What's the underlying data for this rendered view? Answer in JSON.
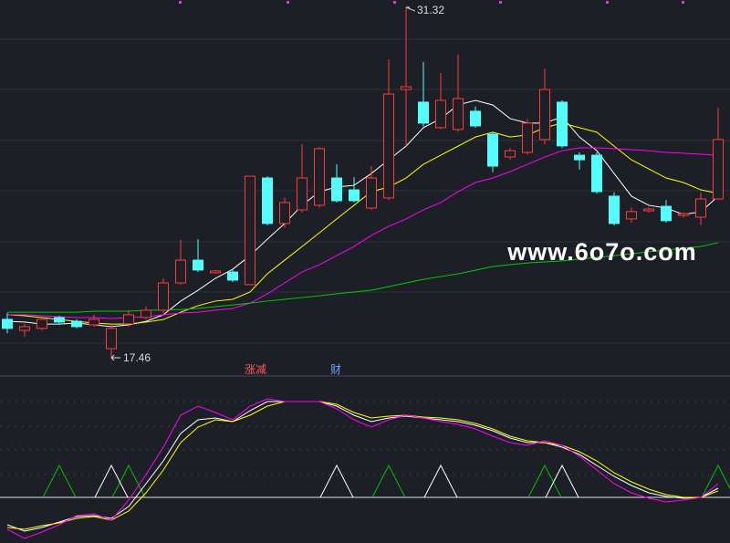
{
  "chart_data": [
    {
      "type": "candlestick",
      "open": [
        18.98,
        18.54,
        18.62,
        19.05,
        18.9,
        18.76,
        17.82,
        18.8,
        19.05,
        19.34,
        20.42,
        21.32,
        20.82,
        20.85,
        20.35,
        24.57,
        22.77,
        23.31,
        23.49,
        24.57,
        24.1,
        23.38,
        23.78,
        28.07,
        27.57,
        26.56,
        26.49,
        27.21,
        26.3,
        25.4,
        25.58,
        26.09,
        27.57,
        25.47,
        25.47,
        23.85,
        22.95,
        23.27,
        23.45,
        23.09,
        23.02,
        23.74
      ],
      "high": [
        19.23,
        18.8,
        19.05,
        19.12,
        18.98,
        19.16,
        18.76,
        19.34,
        19.5,
        20.6,
        22.12,
        22.15,
        20.93,
        20.93,
        24.64,
        24.64,
        23.8,
        25.91,
        25.8,
        25.11,
        24.6,
        25.04,
        29.26,
        31.32,
        29.16,
        28.72,
        29.45,
        27.4,
        26.4,
        25.75,
        26.9,
        28.9,
        27.65,
        25.58,
        25.58,
        24.0,
        23.4,
        23.4,
        23.7,
        23.2,
        24.0,
        27.35
      ],
      "low": [
        18.43,
        18.3,
        18.54,
        18.8,
        18.62,
        18.69,
        17.46,
        18.69,
        18.98,
        19.23,
        20.35,
        20.85,
        20.78,
        20.45,
        20.35,
        22.7,
        22.6,
        23.2,
        23.4,
        23.6,
        23.6,
        23.3,
        23.7,
        25.84,
        26.6,
        26.5,
        26.4,
        26.55,
        24.8,
        25.3,
        25.5,
        25.9,
        25.75,
        24.9,
        23.95,
        22.7,
        22.8,
        23.2,
        22.8,
        23.0,
        22.7,
        23.7
      ],
      "close": [
        18.62,
        18.69,
        18.98,
        18.87,
        18.69,
        18.98,
        18.62,
        19.16,
        19.34,
        20.42,
        21.32,
        20.93,
        20.89,
        20.53,
        24.64,
        22.77,
        23.6,
        24.57,
        25.73,
        23.67,
        23.67,
        24.57,
        27.89,
        28.18,
        26.74,
        27.64,
        27.71,
        26.63,
        25.04,
        25.65,
        26.74,
        28.07,
        25.84,
        25.29,
        24.03,
        22.77,
        23.24,
        23.34,
        22.88,
        23.16,
        23.74,
        26.09
      ],
      "up_color": "#ff3b3b",
      "down_color": "#54fcfc",
      "series": [
        {
          "color": "#ffffff",
          "values": [
            18.9,
            18.87,
            18.79,
            18.79,
            18.83,
            18.76,
            18.69,
            18.76,
            18.9,
            19.16,
            19.7,
            20.13,
            20.6,
            20.96,
            21.5,
            22.15,
            22.77,
            23.49,
            24.03,
            24.21,
            24.28,
            24.75,
            25.29,
            25.83,
            26.56,
            26.92,
            27.46,
            27.64,
            27.46,
            26.92,
            26.74,
            26.74,
            26.99,
            26.19,
            25.65,
            24.75,
            23.85,
            23.49,
            23.38,
            23.13,
            23.23,
            23.85
          ]
        },
        {
          "color": "#ffff00",
          "values": [
            19.16,
            19.12,
            19.05,
            18.97,
            18.9,
            18.83,
            18.79,
            18.79,
            18.87,
            18.97,
            19.26,
            19.52,
            19.7,
            19.77,
            20.06,
            20.78,
            21.32,
            21.86,
            22.4,
            22.95,
            23.49,
            24.03,
            24.21,
            24.57,
            25.11,
            25.47,
            25.83,
            26.19,
            26.38,
            26.19,
            26.27,
            26.56,
            26.74,
            26.56,
            26.38,
            25.83,
            25.29,
            24.93,
            24.57,
            24.39,
            24.1,
            23.96
          ]
        },
        {
          "color": "#ff00ff",
          "values": [
            19.16,
            19.16,
            19.12,
            19.08,
            19.05,
            19.05,
            19.01,
            19.05,
            19.08,
            19.16,
            19.23,
            19.26,
            19.34,
            19.41,
            19.62,
            19.99,
            20.42,
            20.85,
            21.14,
            21.5,
            21.86,
            22.3,
            22.66,
            22.95,
            23.31,
            23.6,
            24.03,
            24.39,
            24.57,
            24.82,
            25.11,
            25.4,
            25.65,
            25.76,
            25.76,
            25.73,
            25.69,
            25.65,
            25.58,
            25.55,
            25.51,
            25.47
          ]
        },
        {
          "color": "#00cc00",
          "values": [
            19.26,
            19.26,
            19.26,
            19.26,
            19.26,
            19.3,
            19.3,
            19.3,
            19.34,
            19.34,
            19.37,
            19.41,
            19.48,
            19.55,
            19.62,
            19.7,
            19.77,
            19.84,
            19.91,
            19.99,
            20.06,
            20.13,
            20.27,
            20.42,
            20.56,
            20.67,
            20.78,
            20.92,
            21.07,
            21.14,
            21.21,
            21.25,
            21.29,
            21.36,
            21.43,
            21.5,
            21.57,
            21.65,
            21.72,
            21.79,
            21.86,
            22.01
          ]
        }
      ],
      "ylim": [
        16.81,
        31.61
      ],
      "high_label": 31.32,
      "low_label": 17.46
    },
    {
      "type": "line",
      "tabs": [
        "涨减",
        "财"
      ],
      "ylim": [
        -40,
        100
      ],
      "hline": 0,
      "series": [
        {
          "color": "#ffffff",
          "values": [
            -24,
            -29.6,
            -26.4,
            -21.6,
            -16.8,
            -16,
            -18.4,
            -8,
            12,
            32,
            56,
            68,
            69.6,
            66.4,
            76,
            84,
            84,
            84,
            84,
            80,
            72,
            66.4,
            69.6,
            71.2,
            69.6,
            68,
            66.4,
            63.2,
            58.4,
            52,
            48,
            48,
            44,
            37.6,
            28,
            18.4,
            10.4,
            4,
            0.8,
            -0.8,
            0,
            8
          ]
        },
        {
          "color": "#ffff00",
          "values": [
            -26.4,
            -28,
            -24.8,
            -22.4,
            -18.4,
            -16.8,
            -20,
            -12,
            4,
            24,
            48,
            61.6,
            68,
            66.4,
            72,
            80,
            84,
            84,
            84,
            81.6,
            74.4,
            69.6,
            71.2,
            72,
            70.4,
            69.6,
            68,
            64.8,
            60,
            53.6,
            49.6,
            48,
            45.6,
            40,
            32,
            21.6,
            13.6,
            7.2,
            2.4,
            0,
            0,
            5.6
          ]
        },
        {
          "color": "#ff00ff",
          "values": [
            -28,
            -36,
            -30.4,
            -24,
            -16,
            -14.4,
            -20,
            -2.4,
            20,
            44,
            72,
            80,
            74.4,
            68,
            80,
            86.4,
            84,
            84,
            84,
            77.6,
            68,
            61.6,
            68,
            72,
            69.6,
            66.4,
            64,
            60,
            53.6,
            48,
            45.6,
            49.6,
            45.6,
            36,
            24,
            12,
            4,
            -0.8,
            -4,
            -2.4,
            0,
            12
          ]
        }
      ],
      "signals": [
        {
          "color": "#00c000",
          "values": [
            null,
            null,
            null,
            28,
            null,
            null,
            null,
            28,
            null,
            null,
            null,
            null,
            null,
            null,
            null,
            null,
            null,
            null,
            null,
            null,
            null,
            null,
            28,
            null,
            null,
            null,
            null,
            null,
            null,
            null,
            null,
            28,
            null,
            null,
            null,
            null,
            null,
            null,
            null,
            null,
            null,
            28
          ]
        },
        {
          "color": "#ffffff",
          "values": [
            null,
            null,
            null,
            null,
            null,
            null,
            28,
            null,
            null,
            null,
            null,
            null,
            null,
            null,
            null,
            null,
            null,
            null,
            null,
            28,
            null,
            null,
            null,
            null,
            null,
            28,
            null,
            null,
            null,
            null,
            null,
            null,
            28,
            null,
            null,
            null,
            null,
            null,
            null,
            null,
            null,
            null
          ]
        }
      ]
    }
  ],
  "watermark": "www.6o7o.com"
}
